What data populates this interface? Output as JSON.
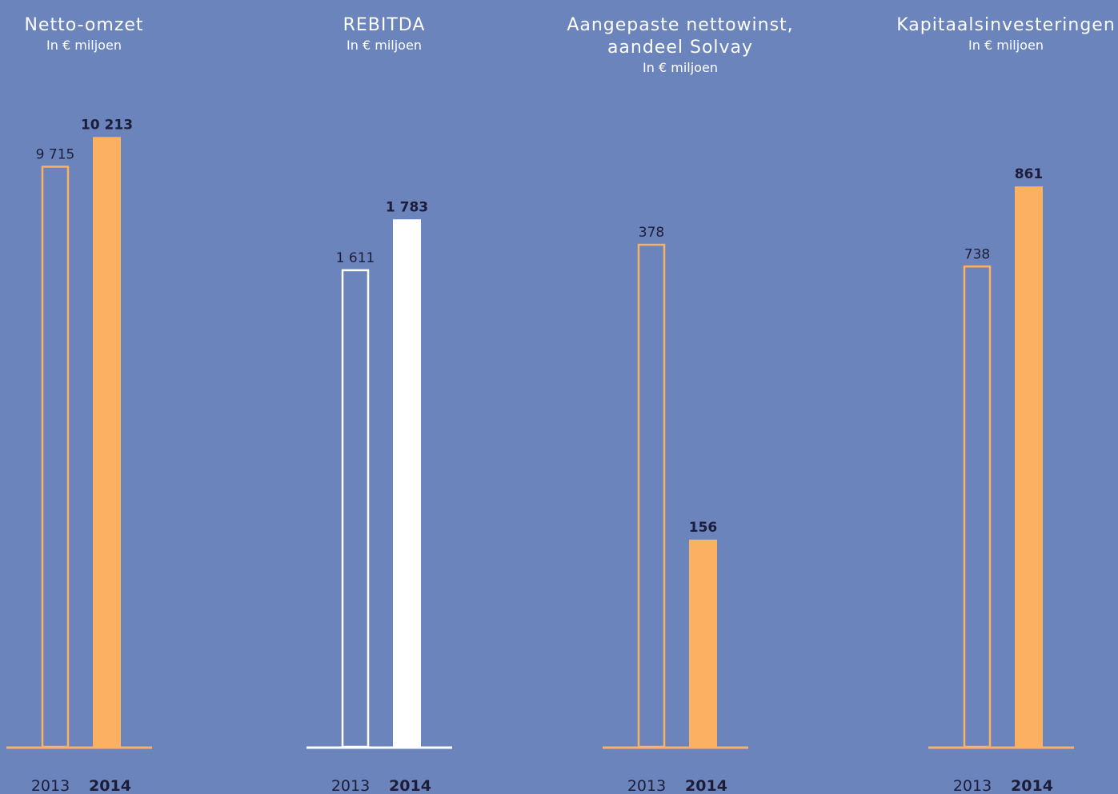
{
  "colors": {
    "background": "#6b84bc",
    "orange": "#fbb062",
    "white": "#ffffff",
    "value_2014": "#1d1d3a",
    "value_2013": "#1d1d3a",
    "year_label": "#1d1d3a"
  },
  "chart_data": [
    {
      "type": "bar",
      "title": "Netto-omzet",
      "subtitle": "In € miljoen",
      "categories": [
        "2013",
        "2014"
      ],
      "values": [
        9715,
        10213
      ],
      "value_labels": [
        "9 715",
        "10 213"
      ],
      "ylim": [
        0,
        10900
      ],
      "color": "orange"
    },
    {
      "type": "bar",
      "title": "REBITDA",
      "subtitle": "In € miljoen",
      "categories": [
        "2013",
        "2014"
      ],
      "values": [
        1611,
        1783
      ],
      "value_labels": [
        "1 611",
        "1 783"
      ],
      "ylim": [
        0,
        2200
      ],
      "color": "white"
    },
    {
      "type": "bar",
      "title_lines": [
        "Aangepaste nettowinst,",
        "aandeel Solvay"
      ],
      "subtitle": "In € miljoen",
      "categories": [
        "2013",
        "2014"
      ],
      "values": [
        378,
        156
      ],
      "value_labels": [
        "378",
        "156"
      ],
      "ylim": [
        0,
        490
      ],
      "color": "orange"
    },
    {
      "type": "bar",
      "title": "Kapitaalsinvesteringen",
      "subtitle": "In € miljoen",
      "categories": [
        "2013",
        "2014"
      ],
      "values": [
        738,
        861
      ],
      "value_labels": [
        "738",
        "861"
      ],
      "ylim": [
        0,
        1000
      ],
      "color": "orange"
    }
  ]
}
